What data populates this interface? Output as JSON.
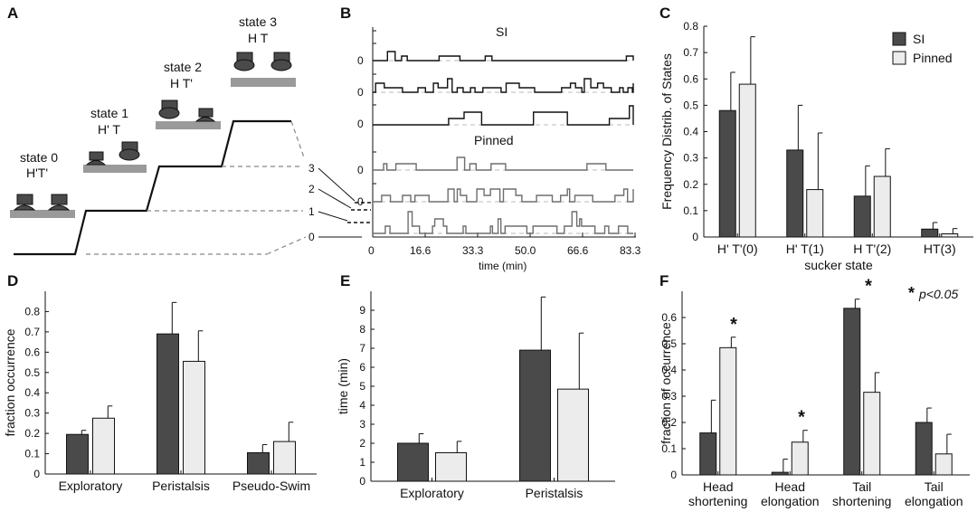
{
  "colors": {
    "si": "#4a4a4a",
    "pinned": "#ececec",
    "dark_trace": "#111111",
    "gray_trace": "#6e6e6e",
    "pad": "#9a9a9a"
  },
  "panelA": {
    "letter": "A",
    "levels": [
      "0",
      "1",
      "2",
      "3"
    ],
    "states": [
      {
        "title": "state 0",
        "code": "H'T'"
      },
      {
        "title": "state 1",
        "code": "H' T"
      },
      {
        "title": "state 2",
        "code": "H T'"
      },
      {
        "title": "state 3",
        "code": "H T"
      }
    ]
  },
  "panelB": {
    "letter": "B",
    "si_label": "SI",
    "pinned_label": "Pinned",
    "xlabel": "time (min)",
    "xticks": [
      "0",
      "16.6",
      "33.3",
      "50.0",
      "66.6",
      "83.3"
    ],
    "zero_label": "0"
  },
  "chart_data": [
    {
      "panel": "C",
      "type": "bar",
      "ylabel": "Frequency Distrib. of States",
      "xlabel": "sucker state",
      "categories": [
        "H' T'(0)",
        "H' T(1)",
        "H T'(2)",
        "HT(3)"
      ],
      "series": [
        {
          "name": "SI",
          "values": [
            0.48,
            0.33,
            0.155,
            0.03
          ],
          "errors": [
            0.145,
            0.17,
            0.115,
            0.025
          ]
        },
        {
          "name": "Pinned",
          "values": [
            0.58,
            0.18,
            0.23,
            0.012
          ],
          "errors": [
            0.18,
            0.215,
            0.105,
            0.02
          ]
        }
      ],
      "ylim": [
        0,
        0.8
      ],
      "yticks": [
        "0",
        "0.1",
        "0.2",
        "0.3",
        "0.4",
        "0.5",
        "0.6",
        "0.7",
        "0.8"
      ],
      "legend": "top-right"
    },
    {
      "panel": "D",
      "type": "bar",
      "ylabel": "fraction occurrence",
      "xlabel": "",
      "categories": [
        "Exploratory",
        "Peristalsis",
        "Pseudo-Swim"
      ],
      "series": [
        {
          "name": "SI",
          "values": [
            0.195,
            0.69,
            0.105
          ],
          "errors": [
            0.02,
            0.155,
            0.04
          ]
        },
        {
          "name": "Pinned",
          "values": [
            0.275,
            0.555,
            0.16
          ],
          "errors": [
            0.06,
            0.15,
            0.095
          ]
        }
      ],
      "ylim": [
        0,
        0.9
      ],
      "yticks": [
        "0",
        "0.1",
        "0.2",
        "0.3",
        "0.4",
        "0.5",
        "0.6",
        "0.7",
        "0.8"
      ]
    },
    {
      "panel": "E",
      "type": "bar",
      "ylabel": "time (min)",
      "xlabel": "",
      "categories": [
        "Exploratory",
        "Peristalsis"
      ],
      "series": [
        {
          "name": "SI",
          "values": [
            2.0,
            6.9
          ],
          "errors": [
            0.5,
            2.8
          ]
        },
        {
          "name": "Pinned",
          "values": [
            1.5,
            4.85
          ],
          "errors": [
            0.6,
            2.95
          ]
        }
      ],
      "ylim": [
        0,
        10
      ],
      "yticks": [
        "0",
        "1",
        "2",
        "3",
        "4",
        "5",
        "6",
        "7",
        "8",
        "9"
      ]
    },
    {
      "panel": "F",
      "type": "bar",
      "ylabel": "fraction of occurrence",
      "xlabel": "",
      "categories": [
        "Head\nshortening",
        "Head\nelongation",
        "Tail\nshortening",
        "Tail\nelongation"
      ],
      "series": [
        {
          "name": "SI",
          "values": [
            0.16,
            0.01,
            0.635,
            0.2
          ],
          "errors": [
            0.125,
            0.05,
            0.035,
            0.055
          ]
        },
        {
          "name": "Pinned",
          "values": [
            0.485,
            0.125,
            0.315,
            0.08
          ],
          "errors": [
            0.04,
            0.045,
            0.075,
            0.075
          ]
        }
      ],
      "ylim": [
        0,
        0.7
      ],
      "yticks": [
        "0",
        "0.1",
        "0.2",
        "0.3",
        "0.4",
        "0.5",
        "0.6"
      ],
      "significance": [
        "*",
        "*",
        "*",
        ""
      ],
      "annotation": "p<0.05"
    }
  ]
}
